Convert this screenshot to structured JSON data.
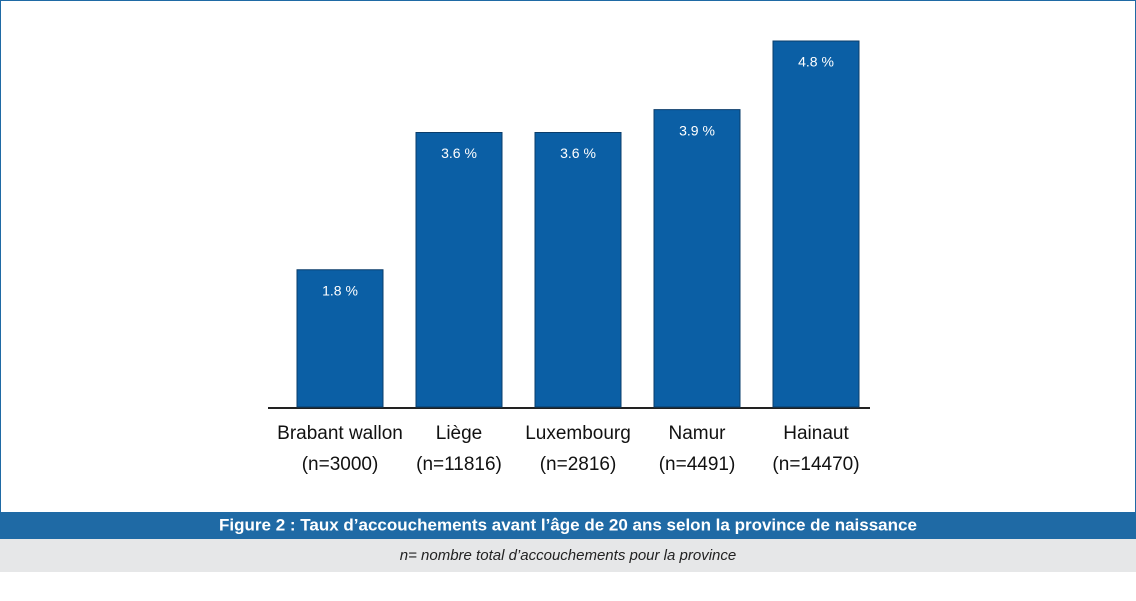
{
  "chart_data": {
    "type": "bar",
    "title": "Figure 2 : Taux d’accouchements avant l’âge de 20 ans selon la province de naissance",
    "subtitle": "n= nombre total d’accouchements pour la province",
    "categories": [
      "Brabant wallon",
      "Liège",
      "Luxembourg",
      "Namur",
      "Hainaut"
    ],
    "category_counts": [
      "(n=3000)",
      "(n=11816)",
      "(n=2816)",
      "(n=4491)",
      "(n=14470)"
    ],
    "values": [
      1.8,
      3.6,
      3.6,
      3.9,
      4.8
    ],
    "value_labels": [
      "1.8 %",
      "3.6 %",
      "3.6 %",
      "3.9 %",
      "4.8 %"
    ],
    "color": "#0b5fa5"
  }
}
